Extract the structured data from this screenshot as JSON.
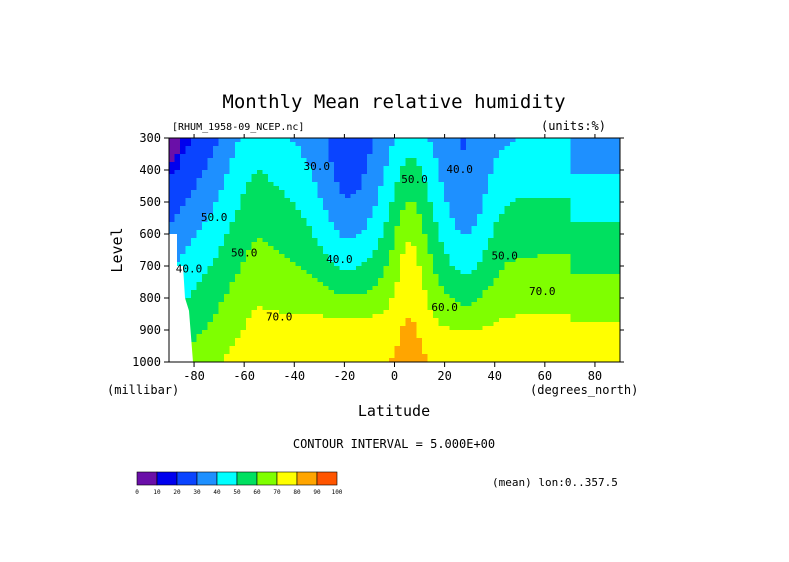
{
  "chart_data": {
    "type": "heatmap",
    "title": "Monthly Mean relative humidity",
    "file_label": "[RHUM_1958-09_NCEP.nc]",
    "units_label": "(units:%)",
    "xlabel": "Latitude",
    "x_units": "(degrees_north)",
    "ylabel": "Level",
    "y_units": "(millibar)",
    "xlim": [
      -90,
      90
    ],
    "ylim": [
      1000,
      300
    ],
    "x_ticks": [
      -80,
      -60,
      -40,
      -20,
      0,
      20,
      40,
      60,
      80
    ],
    "x_tick_labels": [
      "-80",
      "-60",
      "-40",
      "-20",
      "0",
      "20",
      "40",
      "60",
      "80"
    ],
    "y_ticks": [
      300,
      400,
      500,
      600,
      700,
      800,
      900,
      1000
    ],
    "y_tick_labels": [
      "300",
      "400",
      "500",
      "600",
      "700",
      "800",
      "900",
      "1000"
    ],
    "contour_interval_text": "CONTOUR INTERVAL = 5.000E+00",
    "averaging_note": "(mean) lon:0..357.5",
    "color_levels": [
      0,
      10,
      20,
      30,
      40,
      50,
      60,
      70,
      80,
      90,
      100
    ],
    "color_level_labels": [
      "0",
      "10",
      "20",
      "30",
      "40",
      "50",
      "60",
      "70",
      "80",
      "90",
      "100"
    ],
    "colors": [
      "#6a0fa8",
      "#0000ee",
      "#0a44ff",
      "#1e90ff",
      "#00ffff",
      "#00e060",
      "#7fff00",
      "#ffff00",
      "#ffa500",
      "#ff5500",
      "#ff0000"
    ],
    "contour_labels": [
      {
        "text": "30.0",
        "lat": -31,
        "lev": 400
      },
      {
        "text": "50.0",
        "lat": 8,
        "lev": 440
      },
      {
        "text": "40.0",
        "lat": 26,
        "lev": 410
      },
      {
        "text": "50.0",
        "lat": -72,
        "lev": 560
      },
      {
        "text": "50.0",
        "lat": -60,
        "lev": 670
      },
      {
        "text": "40.0",
        "lat": -82,
        "lev": 720
      },
      {
        "text": "40.0",
        "lat": -22,
        "lev": 690
      },
      {
        "text": "50.0",
        "lat": 44,
        "lev": 680
      },
      {
        "text": "60.0",
        "lat": 20,
        "lev": 840
      },
      {
        "text": "70.0",
        "lat": 59,
        "lev": 790
      },
      {
        "text": "70.0",
        "lat": -46,
        "lev": 870
      }
    ],
    "grid": false
  }
}
